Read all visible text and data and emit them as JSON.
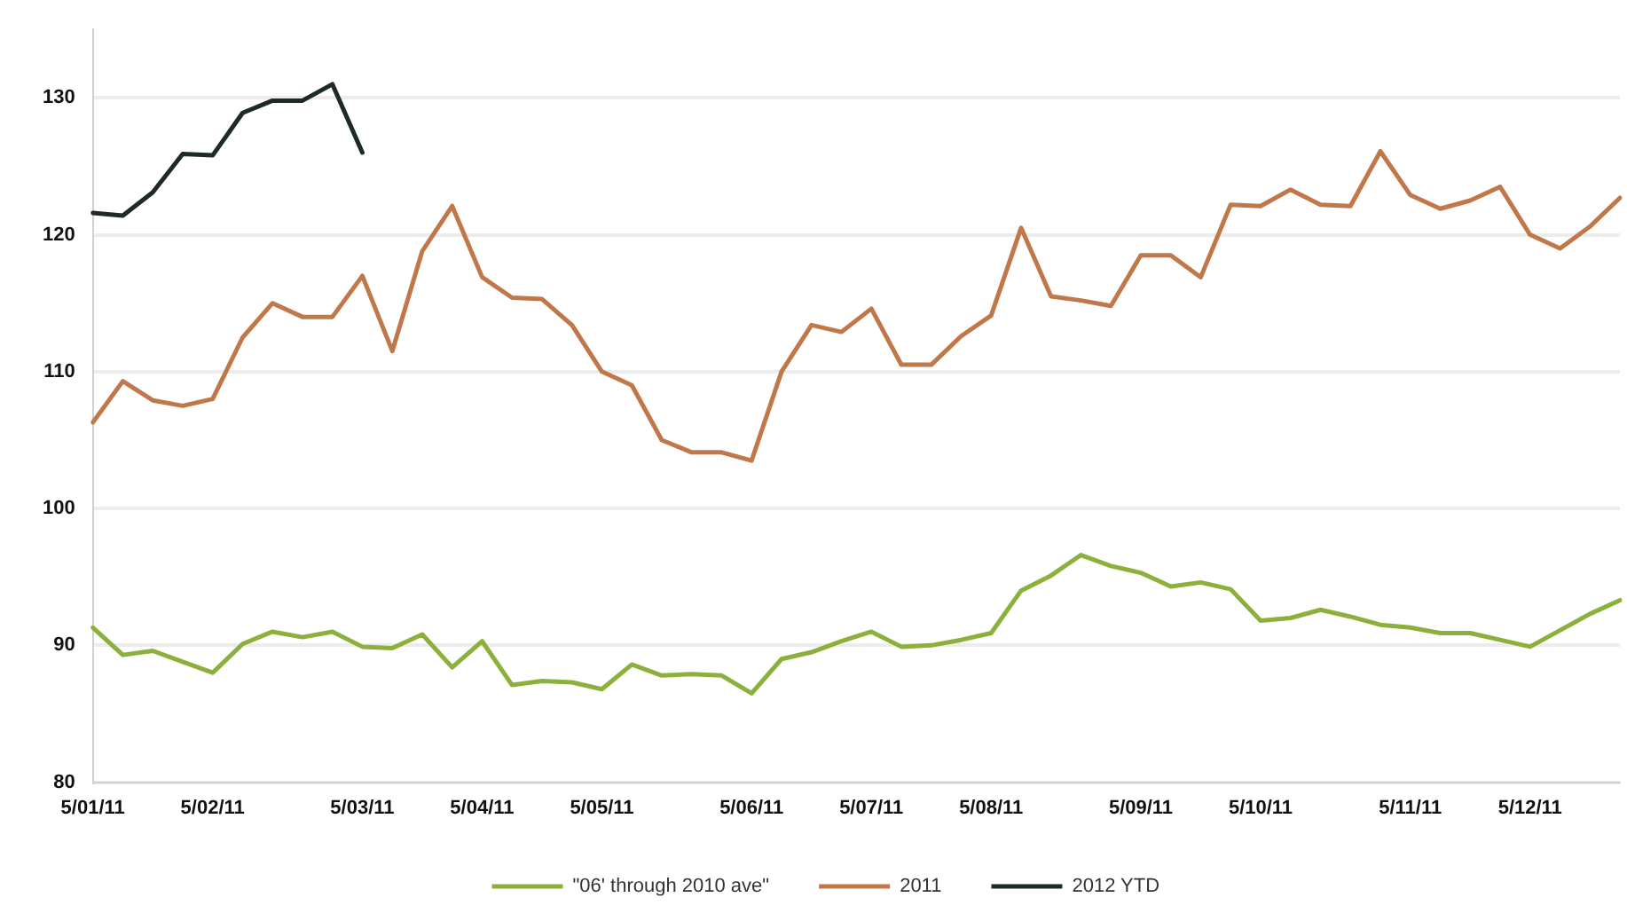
{
  "chart_data": {
    "type": "line",
    "categories": [
      "5/01/11",
      null,
      null,
      null,
      "5/02/11",
      null,
      null,
      null,
      null,
      "5/03/11",
      null,
      null,
      null,
      "5/04/11",
      null,
      null,
      null,
      "5/05/11",
      null,
      null,
      null,
      null,
      "5/06/11",
      null,
      null,
      null,
      "5/07/11",
      null,
      null,
      null,
      "5/08/11",
      null,
      null,
      null,
      null,
      "5/09/11",
      null,
      null,
      null,
      "5/10/11",
      null,
      null,
      null,
      null,
      "5/11/11",
      null,
      null,
      null,
      "5/12/11",
      null,
      null,
      null
    ],
    "series": [
      {
        "name": "\"06' through 2010 ave\"",
        "color": "#8cb03c",
        "values": [
          91.3,
          89.3,
          89.6,
          88.8,
          88,
          90.1,
          91,
          90.6,
          91,
          89.9,
          89.8,
          90.8,
          88.4,
          90.3,
          87.1,
          87.4,
          87.3,
          86.8,
          88.6,
          87.8,
          87.9,
          87.8,
          86.5,
          89,
          89.5,
          90.3,
          91,
          89.9,
          90,
          90.4,
          90.9,
          94,
          95.1,
          96.6,
          95.8,
          95.3,
          94.3,
          94.6,
          94.1,
          91.8,
          92,
          92.6,
          92.1,
          91.5,
          91.3,
          90.9,
          90.9,
          90.4,
          89.9,
          91.1,
          92.3,
          93.3
        ]
      },
      {
        "name": "2011",
        "color": "#c0784a",
        "values": [
          106.3,
          109.3,
          107.9,
          107.5,
          108,
          112.5,
          115,
          114,
          114,
          117,
          111.5,
          118.8,
          122.1,
          116.9,
          115.4,
          115.3,
          113.4,
          110,
          109,
          105,
          104.1,
          104.1,
          103.5,
          110,
          113.4,
          112.9,
          114.6,
          110.5,
          110.5,
          112.6,
          114.1,
          120.5,
          115.5,
          115.2,
          114.8,
          118.5,
          118.5,
          116.9,
          122.2,
          122.1,
          123.3,
          122.2,
          122.1,
          126.1,
          122.9,
          121.9,
          122.5,
          123.5,
          120,
          119,
          120.6,
          122.7
        ]
      },
      {
        "name": "2012 YTD",
        "color": "#1e2a28",
        "values": [
          121.6,
          121.4,
          123.1,
          125.9,
          125.8,
          128.9,
          129.8,
          129.8,
          131,
          126,
          null,
          null,
          null,
          null,
          null,
          null,
          null,
          null,
          null,
          null,
          null,
          null,
          null,
          null,
          null,
          null,
          null,
          null,
          null,
          null,
          null,
          null,
          null,
          null,
          null,
          null,
          null,
          null,
          null,
          null,
          null,
          null,
          null,
          null,
          null,
          null,
          null,
          null,
          null,
          null,
          null,
          null
        ]
      }
    ],
    "ylim": [
      80,
      135
    ],
    "yticks": [
      80,
      90,
      100,
      110,
      120,
      130
    ],
    "grid": "y",
    "legend": "bottom",
    "marker": "none",
    "line_style": "solid"
  }
}
